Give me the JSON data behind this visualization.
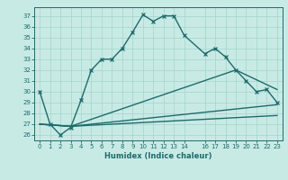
{
  "xlabel": "Humidex (Indice chaleur)",
  "ylabel": "",
  "background_color": "#c8eae5",
  "line_color": "#1e6b6b",
  "grid_color": "#a8d8d0",
  "xlim": [
    -0.5,
    23.5
  ],
  "ylim": [
    25.5,
    37.8
  ],
  "xticks": [
    0,
    1,
    2,
    3,
    4,
    5,
    6,
    7,
    8,
    9,
    10,
    11,
    12,
    13,
    14,
    16,
    17,
    18,
    19,
    20,
    21,
    22,
    23
  ],
  "yticks": [
    26,
    27,
    28,
    29,
    30,
    31,
    32,
    33,
    34,
    35,
    36,
    37
  ],
  "series": [
    {
      "x": [
        0,
        1,
        2,
        3,
        4,
        5,
        6,
        7,
        8,
        9,
        10,
        11,
        12,
        13,
        14,
        16,
        17,
        18,
        19,
        20,
        21,
        22,
        23
      ],
      "y": [
        30,
        27,
        26,
        26.7,
        29.2,
        32,
        33,
        33,
        34,
        35.5,
        37.1,
        36.5,
        37,
        37,
        35.2,
        33.5,
        34,
        33.2,
        32,
        31,
        30,
        30.2,
        29
      ],
      "marker": "x",
      "linewidth": 1.0,
      "markersize": 3.5
    },
    {
      "x": [
        0,
        3,
        23
      ],
      "y": [
        27.0,
        26.8,
        28.8
      ],
      "marker": null,
      "linewidth": 1.0
    },
    {
      "x": [
        0,
        3,
        23
      ],
      "y": [
        27.0,
        26.8,
        27.8
      ],
      "marker": null,
      "linewidth": 1.0
    },
    {
      "x": [
        0,
        3,
        19,
        23
      ],
      "y": [
        27.0,
        26.8,
        32.0,
        30.2
      ],
      "marker": null,
      "linewidth": 1.0
    }
  ]
}
